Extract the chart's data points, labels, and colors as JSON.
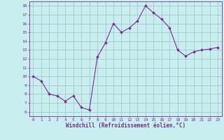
{
  "x": [
    0,
    1,
    2,
    3,
    4,
    5,
    6,
    7,
    8,
    9,
    10,
    11,
    12,
    13,
    14,
    15,
    16,
    17,
    18,
    19,
    20,
    21,
    22,
    23
  ],
  "y": [
    10,
    9.5,
    8,
    7.8,
    7.2,
    7.8,
    6.5,
    6.2,
    12.2,
    13.8,
    16,
    15,
    15.5,
    16.3,
    18,
    17.2,
    16.5,
    15.5,
    13,
    12.3,
    12.8,
    13,
    13.1,
    13.3
  ],
  "line_color": "#7B2D8B",
  "marker_color": "#7B2D8B",
  "bg_color": "#C8EEF0",
  "grid_color": "#9BBFC8",
  "xlabel": "Windchill (Refroidissement éolien,°C)",
  "xlabel_color": "#7B2D8B",
  "tick_color": "#7B2D8B",
  "ylim": [
    5.5,
    18.5
  ],
  "xlim": [
    -0.5,
    23.5
  ],
  "yticks": [
    6,
    7,
    8,
    9,
    10,
    11,
    12,
    13,
    14,
    15,
    16,
    17,
    18
  ],
  "xticks": [
    0,
    1,
    2,
    3,
    4,
    5,
    6,
    7,
    8,
    9,
    10,
    11,
    12,
    13,
    14,
    15,
    16,
    17,
    18,
    19,
    20,
    21,
    22,
    23
  ],
  "marker_size": 2.0,
  "line_width": 0.8
}
